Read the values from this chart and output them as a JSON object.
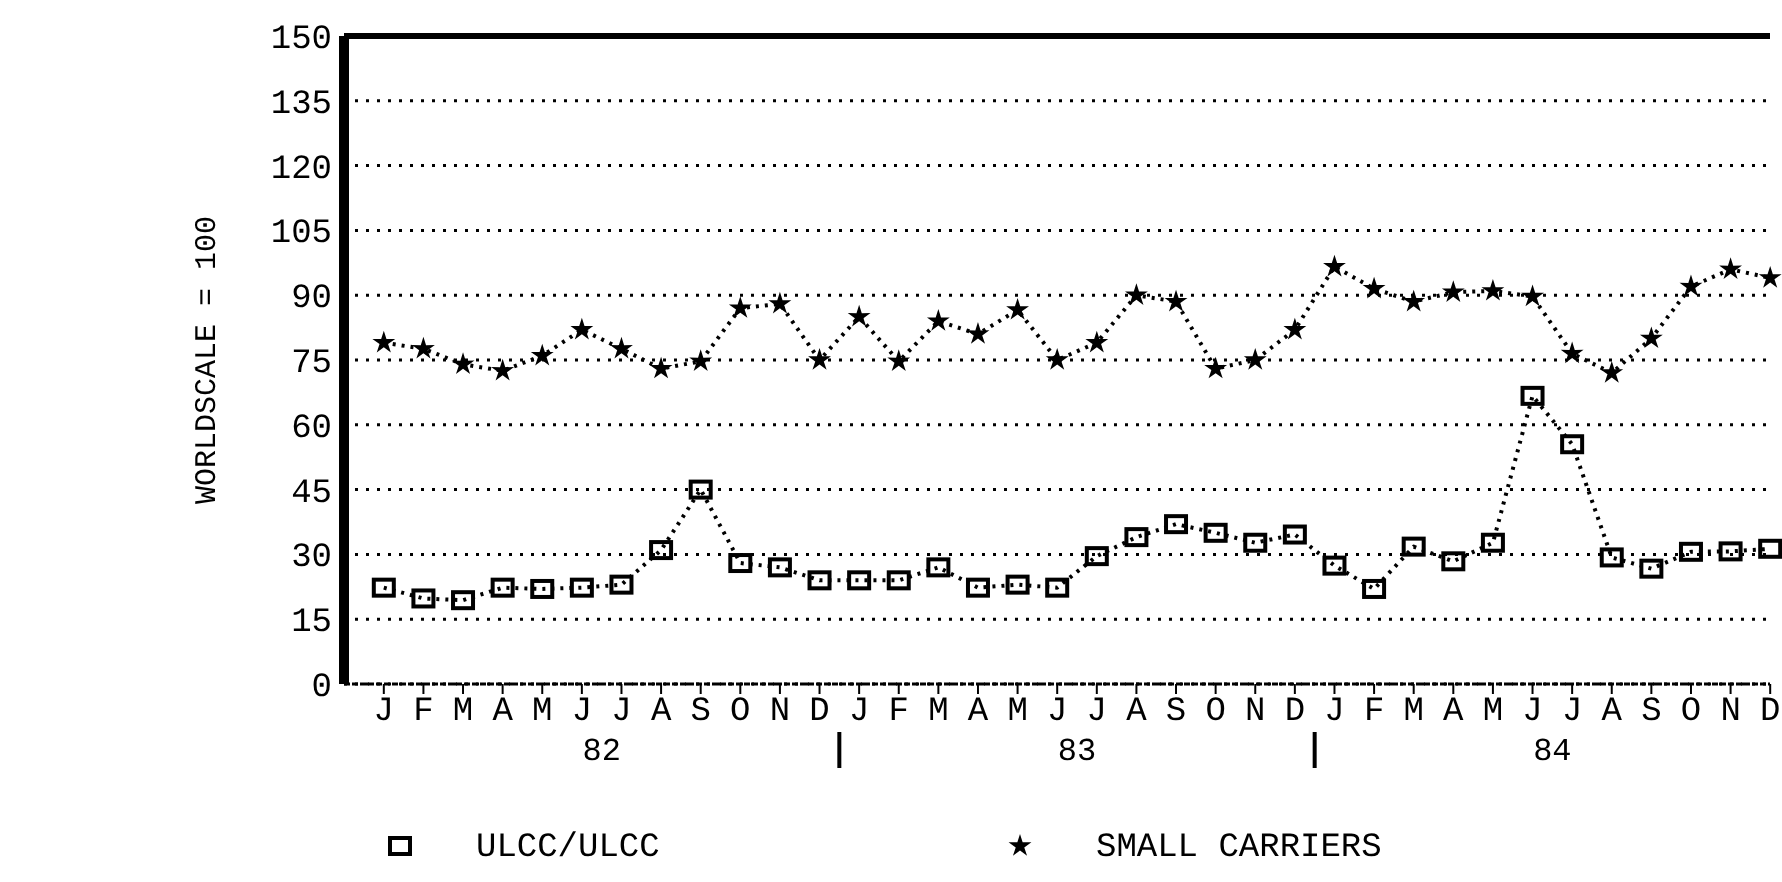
{
  "chart_data": {
    "type": "line",
    "ylabel": "WORLDSCALE = 100",
    "categories": [
      "J",
      "F",
      "M",
      "A",
      "M",
      "J",
      "J",
      "A",
      "S",
      "O",
      "N",
      "D",
      "J",
      "F",
      "M",
      "A",
      "M",
      "J",
      "J",
      "A",
      "S",
      "O",
      "N",
      "D",
      "J",
      "F",
      "M",
      "A",
      "M",
      "J",
      "J",
      "A",
      "S",
      "O",
      "N",
      "D"
    ],
    "series": [
      {
        "name": "ULCC/ULCC",
        "color": "#000000",
        "marker": "square",
        "values": [
          22.3,
          19.8,
          19.4,
          22.3,
          22,
          22.3,
          23,
          31,
          45,
          28,
          27,
          24,
          24,
          24,
          27,
          22.3,
          23,
          22.3,
          29.6,
          34,
          37,
          35,
          32.7,
          34.6,
          27.4,
          22,
          31.8,
          28.4,
          32.7,
          66.7,
          55.5,
          29.3,
          26.7,
          30.6,
          30.7,
          31.3
        ]
      },
      {
        "name": "SMALL CARRIERS",
        "color": "#000000",
        "marker": "star",
        "values": [
          79,
          77.6,
          74,
          72.5,
          76,
          82,
          77.6,
          73,
          74.7,
          87,
          88,
          75,
          85,
          74.7,
          84,
          81,
          86.6,
          75,
          79,
          90,
          88.5,
          73,
          75,
          82,
          96.6,
          91.5,
          88.5,
          90.7,
          91,
          89.7,
          76.5,
          72,
          80,
          92,
          96,
          94
        ]
      }
    ],
    "ylim": [
      0,
      150
    ],
    "yticks": [
      0,
      15,
      30,
      45,
      60,
      75,
      90,
      105,
      120,
      135,
      150
    ],
    "grid": "y",
    "line_style": "dotted",
    "legend": "bottom",
    "annotations": [
      "82",
      "83",
      "84"
    ]
  }
}
